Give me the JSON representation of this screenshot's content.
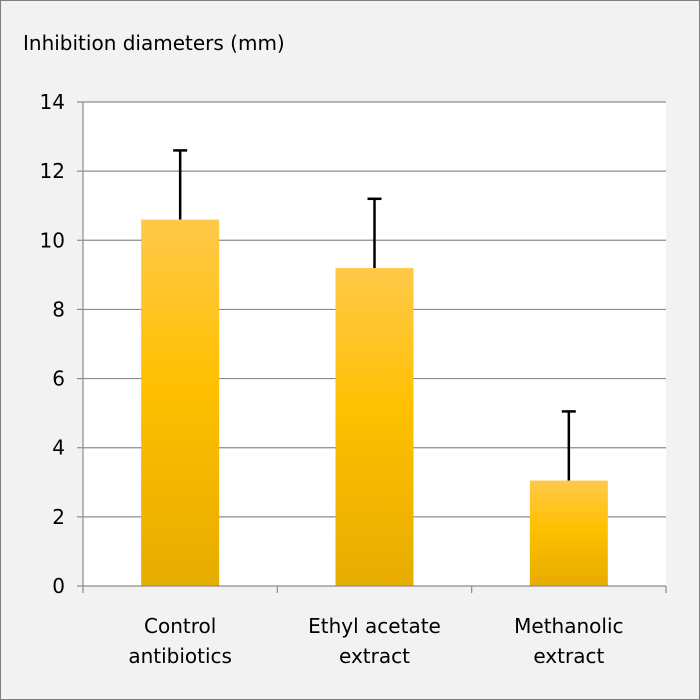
{
  "chart_data": {
    "type": "bar",
    "ylabel": "Inhibition diameters (mm)",
    "categories": [
      [
        "Control",
        "antibiotics"
      ],
      [
        "Ethyl acetate",
        "extract"
      ],
      [
        "Methanolic",
        "extract"
      ]
    ],
    "values": [
      10.6,
      9.2,
      3.05
    ],
    "error_plus": [
      2.0,
      2.0,
      2.0
    ],
    "ylim": [
      0,
      14
    ],
    "yticks": [
      "0",
      "2",
      "4",
      "6",
      "8",
      "10",
      "12",
      "14"
    ],
    "grid": true,
    "legend": "none",
    "colors": {
      "bar_top": "#ffc94a",
      "bar_mid": "#ffc000",
      "bar_bottom": "#e6ac00",
      "grid": "#8c8c8c",
      "plot_bg": "#ffffff",
      "error_bar": "#000000"
    }
  }
}
